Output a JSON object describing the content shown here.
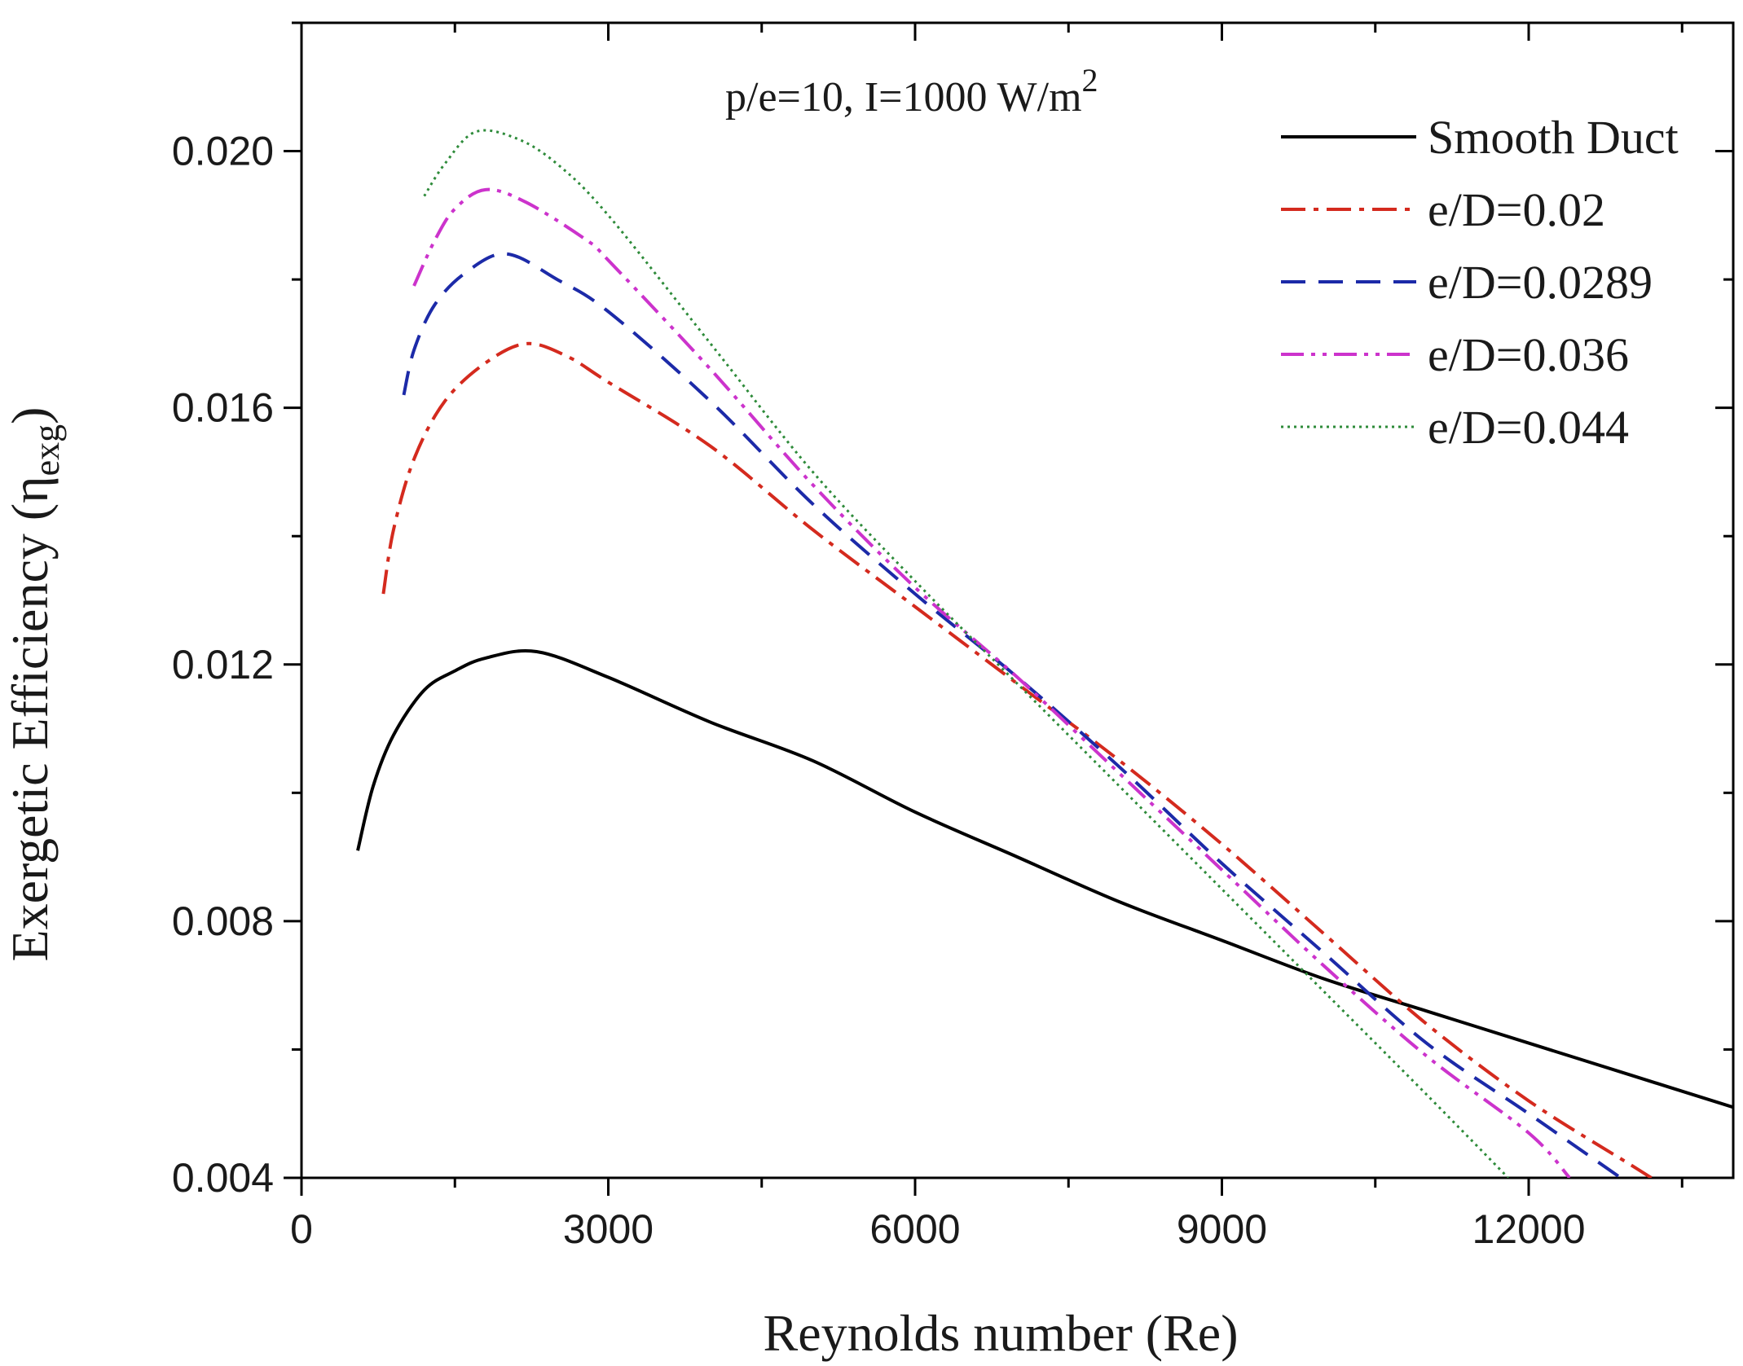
{
  "chart_data": {
    "type": "line",
    "title": "",
    "annotation": {
      "text": "p/e=10, I=1000 W/m",
      "superscript": "2"
    },
    "xlabel": "Reynolds number (Re)",
    "ylabel": {
      "prefix": "Exergetic Efficiency (η",
      "subscript": "exg",
      "suffix": ")"
    },
    "xlim": [
      0,
      14000
    ],
    "ylim": [
      0.004,
      0.022
    ],
    "x_ticks": [
      0,
      3000,
      6000,
      9000,
      12000
    ],
    "x_tick_labels": [
      "0",
      "3000",
      "6000",
      "9000",
      "12000"
    ],
    "x_minor_step": 1500,
    "y_ticks": [
      0.004,
      0.008,
      0.012,
      0.016,
      0.02
    ],
    "y_tick_labels": [
      "0.004",
      "0.008",
      "0.012",
      "0.016",
      "0.020"
    ],
    "y_minor_step": 0.002,
    "grid": false,
    "legend_position": "top-right",
    "series": [
      {
        "name": "Smooth Duct",
        "color": "#000000",
        "dash": "solid",
        "points": [
          [
            550,
            0.0091
          ],
          [
            700,
            0.0101
          ],
          [
            900,
            0.0109
          ],
          [
            1200,
            0.0116
          ],
          [
            1500,
            0.0119
          ],
          [
            1800,
            0.0121
          ],
          [
            2300,
            0.0122
          ],
          [
            3000,
            0.0118
          ],
          [
            4000,
            0.0111
          ],
          [
            5000,
            0.0105
          ],
          [
            6000,
            0.0097
          ],
          [
            7000,
            0.009
          ],
          [
            8000,
            0.0083
          ],
          [
            9000,
            0.0077
          ],
          [
            10000,
            0.0071
          ],
          [
            11000,
            0.0066
          ],
          [
            12000,
            0.0061
          ],
          [
            13000,
            0.0056
          ],
          [
            14000,
            0.0051
          ]
        ]
      },
      {
        "name": "e/D=0.02",
        "color": "#d42a1e",
        "dash": "dashdot",
        "points": [
          [
            800,
            0.0131
          ],
          [
            900,
            0.0141
          ],
          [
            1100,
            0.0152
          ],
          [
            1400,
            0.0161
          ],
          [
            1800,
            0.0167
          ],
          [
            2200,
            0.017
          ],
          [
            2600,
            0.0168
          ],
          [
            3000,
            0.0164
          ],
          [
            4000,
            0.0154
          ],
          [
            5000,
            0.0141
          ],
          [
            6000,
            0.0129
          ],
          [
            7000,
            0.0117
          ],
          [
            8000,
            0.0105
          ],
          [
            9000,
            0.0092
          ],
          [
            10000,
            0.0078
          ],
          [
            11000,
            0.0064
          ],
          [
            12000,
            0.0052
          ],
          [
            13000,
            0.0042
          ],
          [
            13200,
            0.004
          ]
        ]
      },
      {
        "name": "e/D=0.0289",
        "color": "#1c2aa8",
        "dash": "dashed",
        "points": [
          [
            1000,
            0.0162
          ],
          [
            1100,
            0.0169
          ],
          [
            1300,
            0.0176
          ],
          [
            1600,
            0.0181
          ],
          [
            2000,
            0.0184
          ],
          [
            2500,
            0.018
          ],
          [
            3000,
            0.0175
          ],
          [
            4000,
            0.0161
          ],
          [
            5000,
            0.0145
          ],
          [
            6000,
            0.0131
          ],
          [
            7000,
            0.0118
          ],
          [
            8000,
            0.0104
          ],
          [
            9000,
            0.0089
          ],
          [
            10000,
            0.0075
          ],
          [
            11000,
            0.0061
          ],
          [
            12000,
            0.005
          ],
          [
            12900,
            0.004
          ]
        ]
      },
      {
        "name": "e/D=0.036",
        "color": "#cc33cc",
        "dash": "dashdotdot",
        "points": [
          [
            1100,
            0.0179
          ],
          [
            1300,
            0.0186
          ],
          [
            1500,
            0.0191
          ],
          [
            1800,
            0.0194
          ],
          [
            2200,
            0.0192
          ],
          [
            2800,
            0.0186
          ],
          [
            3000,
            0.0183
          ],
          [
            4000,
            0.0166
          ],
          [
            5000,
            0.0148
          ],
          [
            6000,
            0.0132
          ],
          [
            7000,
            0.0118
          ],
          [
            8000,
            0.0103
          ],
          [
            9000,
            0.0088
          ],
          [
            10000,
            0.0073
          ],
          [
            11000,
            0.0059
          ],
          [
            12000,
            0.0047
          ],
          [
            12400,
            0.004
          ]
        ]
      },
      {
        "name": "e/D=0.044",
        "color": "#2e8b3a",
        "dash": "dotted",
        "points": [
          [
            1200,
            0.0193
          ],
          [
            1400,
            0.0198
          ],
          [
            1700,
            0.0203
          ],
          [
            2100,
            0.0202
          ],
          [
            2500,
            0.0198
          ],
          [
            3000,
            0.019
          ],
          [
            4000,
            0.017
          ],
          [
            5000,
            0.015
          ],
          [
            6000,
            0.0133
          ],
          [
            7000,
            0.0117
          ],
          [
            8000,
            0.0101
          ],
          [
            9000,
            0.0085
          ],
          [
            10000,
            0.0069
          ],
          [
            11000,
            0.0053
          ],
          [
            11800,
            0.004
          ]
        ]
      }
    ]
  }
}
